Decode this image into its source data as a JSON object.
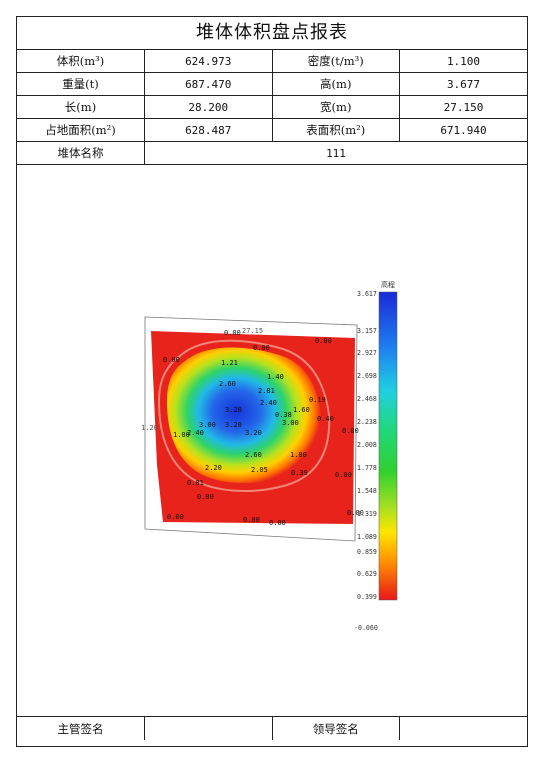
{
  "report": {
    "title": "堆体体积盘点报表",
    "volume_label": "体积(m³)",
    "volume_value": "624.973",
    "density_label": "密度(t/m³)",
    "density_value": "1.100",
    "weight_label": "重量(t)",
    "weight_value": "687.470",
    "height_label": "高(m)",
    "height_value": "3.677",
    "length_label": "长(m)",
    "length_value": "28.200",
    "width_label": "宽(m)",
    "width_value": "27.150",
    "area_label": "占地面积(m²)",
    "area_value": "628.487",
    "surface_label": "表面积(m²)",
    "surface_value": "671.940",
    "name_label": "堆体名称",
    "name_value": "111",
    "supervisor_sign_label": "主管签名",
    "leader_sign_label": "领导签名"
  },
  "legend": {
    "title": "高程",
    "ticks": [
      "3.617",
      "3.157",
      "2.927",
      "2.698",
      "2.468",
      "2.238",
      "2.008",
      "1.778",
      "1.548",
      "1.319",
      "1.089",
      "0.859",
      "0.629",
      "0.399",
      "-0.060"
    ]
  },
  "map_labels": {
    "top_dim": "27.15",
    "left_dim": "1.20",
    "contours": [
      "0.00",
      "0.00",
      "0.00",
      "0.00",
      "1.21",
      "1.40",
      "2.60",
      "2.81",
      "2.40",
      "0.19",
      "1.60",
      "0.38",
      "3.00",
      "0.40",
      "0.00",
      "3.20",
      "3.00",
      "3.20",
      "3.20",
      "1.00",
      "2.40",
      "2.60",
      "1.80",
      "2.20",
      "2.05",
      "0.39",
      "0.00",
      "0.81",
      "0.00",
      "0.00",
      "0.00",
      "0.00",
      "0.00"
    ]
  },
  "colors": {
    "ground": "#e8231b",
    "low": "#ffd200",
    "mid": "#2fd84a",
    "high": "#1f3fe0"
  }
}
